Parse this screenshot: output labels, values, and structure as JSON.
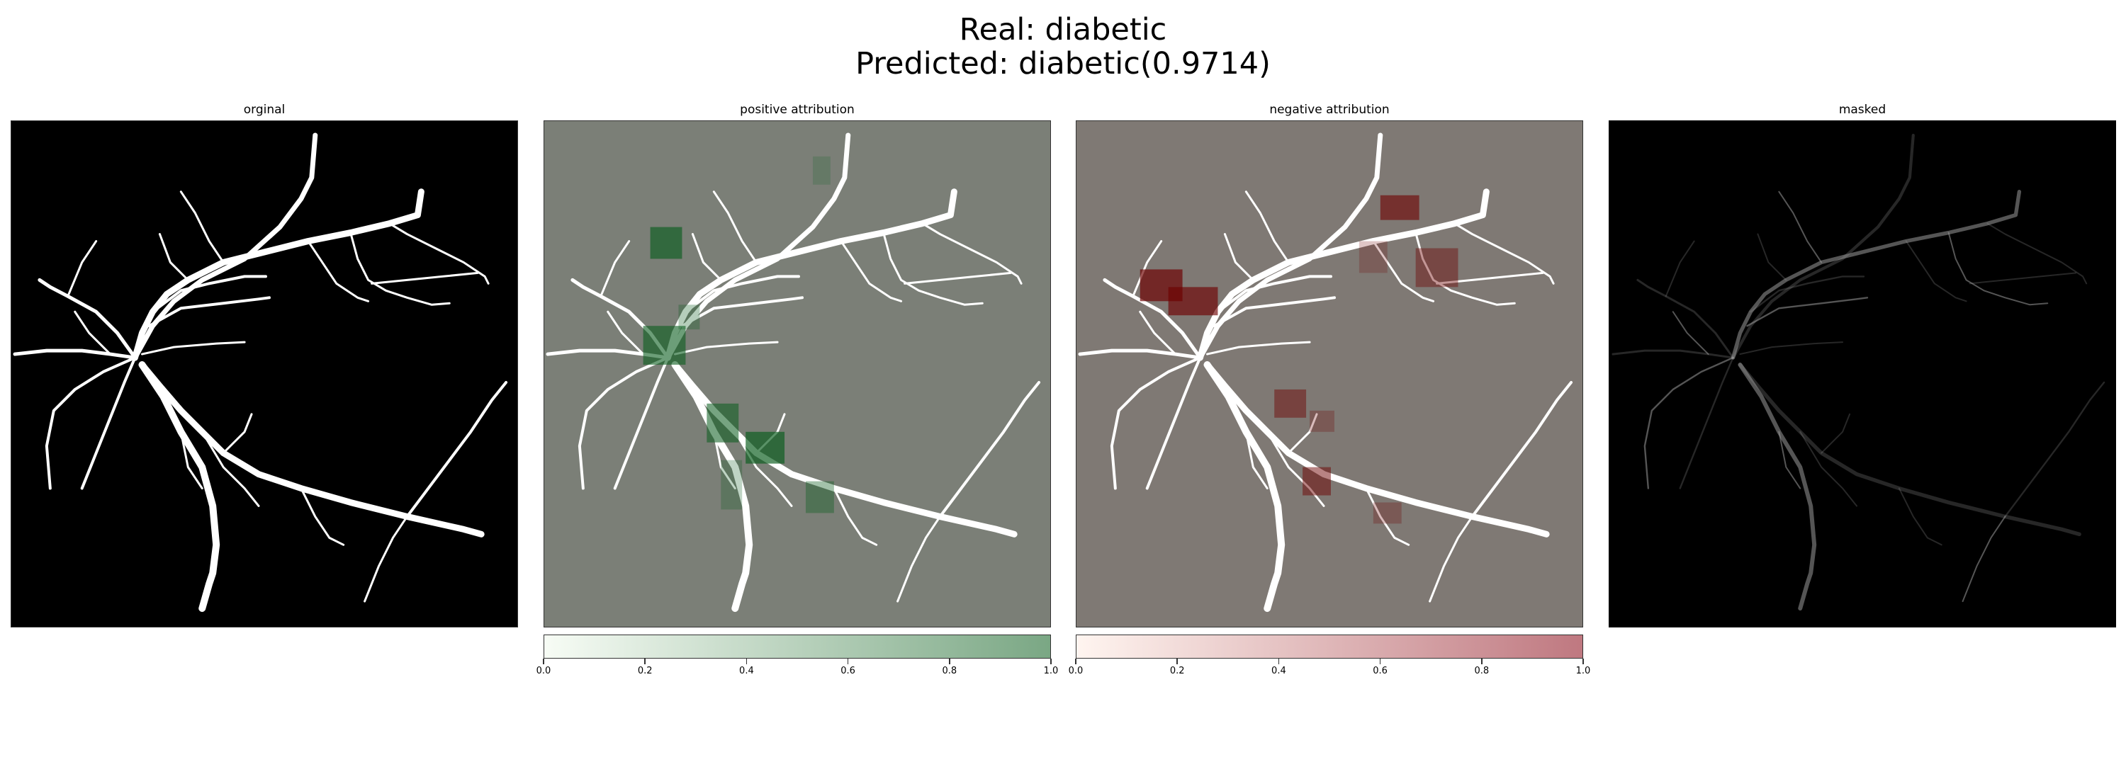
{
  "figure": {
    "title_line1": "Real: diabetic",
    "title_line2": "Predicted: diabetic(0.9714)"
  },
  "panels": [
    {
      "title": "orginal",
      "background": "#000000",
      "vessel_color": "#ffffff"
    },
    {
      "title": "positive attribution",
      "background": "#7b7f77",
      "vessel_color": "#ffffff",
      "highlight_color": "#0a5d1e"
    },
    {
      "title": "negative attribution",
      "background": "#7f7974",
      "vessel_color": "#ffffff",
      "highlight_color": "#6e0000"
    },
    {
      "title": "masked",
      "background": "#000000",
      "vessel_color": "#9a9a9a"
    }
  ],
  "chart_data": {
    "type": "heatmap",
    "title": "Real: diabetic\nPredicted: diabetic(0.9714)",
    "subplots": [
      "orginal",
      "positive attribution",
      "negative attribution",
      "masked"
    ],
    "colorbars": [
      {
        "panel": "positive attribution",
        "range": [
          0.0,
          1.0
        ],
        "colormap": "Greens",
        "color_low": "#f7fcf5",
        "color_high": "#7aa784",
        "ticks": [
          "0.0",
          "0.2",
          "0.4",
          "0.6",
          "0.8",
          "1.0"
        ]
      },
      {
        "panel": "negative attribution",
        "range": [
          0.0,
          1.0
        ],
        "colormap": "Reds",
        "color_low": "#fff5f0",
        "color_high": "#bf7880",
        "ticks": [
          "0.0",
          "0.2",
          "0.4",
          "0.6",
          "0.8",
          "1.0"
        ]
      }
    ]
  }
}
